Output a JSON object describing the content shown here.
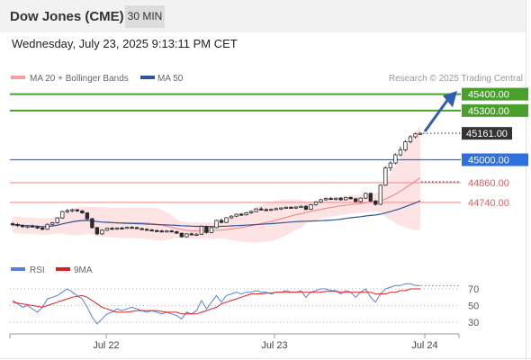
{
  "header": {
    "title": "Dow Jones (CME)",
    "timeframe": "30 MIN",
    "datetime": "Wednesday, July 23, 2025 9:13:11 PM CET"
  },
  "legend": {
    "ma20": "MA 20 + Bollinger Bands",
    "ma50": "MA 50",
    "credit": "Research © 2025 Trading Central",
    "ma20_color": "#f08080",
    "ma50_color": "#2f5597"
  },
  "rsi_legend": {
    "rsi": "RSI",
    "ma9": "9MA",
    "rsi_color": "#5b7fde",
    "ma9_color": "#e02020"
  },
  "chart_data": [
    {
      "type": "candlestick",
      "title": "Dow Jones (CME)",
      "ylim": [
        44500,
        45500
      ],
      "levels": [
        {
          "value": "45400.00",
          "style": "resistance",
          "color": "#4aa02c"
        },
        {
          "value": "45300.00",
          "style": "resistance",
          "color": "#4aa02c"
        },
        {
          "value": "45161.00",
          "style": "last-price",
          "color": "#333333"
        },
        {
          "value": "45000.00",
          "style": "pivot",
          "color": "#2f6fde"
        },
        {
          "value": "44860.00",
          "style": "support",
          "color": "#e06060"
        },
        {
          "value": "44740.00",
          "style": "support",
          "color": "#e06060"
        }
      ],
      "x_ticks": [
        "Jul 22",
        "Jul 23",
        "Jul 24"
      ],
      "candles": [
        [
          44610,
          44620,
          44595,
          44605
        ],
        [
          44605,
          44615,
          44590,
          44600
        ],
        [
          44600,
          44606,
          44585,
          44592
        ],
        [
          44592,
          44600,
          44582,
          44596
        ],
        [
          44596,
          44604,
          44586,
          44590
        ],
        [
          44590,
          44598,
          44578,
          44584
        ],
        [
          44584,
          44590,
          44570,
          44576
        ],
        [
          44576,
          44612,
          44572,
          44606
        ],
        [
          44606,
          44620,
          44600,
          44616
        ],
        [
          44616,
          44650,
          44610,
          44645
        ],
        [
          44645,
          44690,
          44640,
          44684
        ],
        [
          44684,
          44700,
          44675,
          44690
        ],
        [
          44690,
          44702,
          44680,
          44695
        ],
        [
          44695,
          44700,
          44682,
          44688
        ],
        [
          44688,
          44694,
          44670,
          44676
        ],
        [
          44676,
          44680,
          44630,
          44640
        ],
        [
          44640,
          44646,
          44580,
          44586
        ],
        [
          44586,
          44592,
          44540,
          44548
        ],
        [
          44548,
          44576,
          44542,
          44570
        ],
        [
          44570,
          44586,
          44566,
          44582
        ],
        [
          44582,
          44590,
          44574,
          44578
        ],
        [
          44578,
          44588,
          44572,
          44584
        ],
        [
          44584,
          44590,
          44578,
          44582
        ],
        [
          44582,
          44592,
          44578,
          44588
        ],
        [
          44588,
          44594,
          44580,
          44586
        ],
        [
          44586,
          44592,
          44578,
          44580
        ],
        [
          44580,
          44586,
          44572,
          44576
        ],
        [
          44576,
          44582,
          44568,
          44572
        ],
        [
          44572,
          44578,
          44564,
          44568
        ],
        [
          44568,
          44574,
          44560,
          44566
        ],
        [
          44566,
          44572,
          44558,
          44562
        ],
        [
          44562,
          44570,
          44556,
          44566
        ],
        [
          44566,
          44572,
          44560,
          44562
        ],
        [
          44562,
          44566,
          44548,
          44552
        ],
        [
          44552,
          44556,
          44525,
          44530
        ],
        [
          44530,
          44552,
          44526,
          44548
        ],
        [
          44548,
          44556,
          44538,
          44542
        ],
        [
          44542,
          44552,
          44536,
          44546
        ],
        [
          44546,
          44600,
          44540,
          44594
        ],
        [
          44594,
          44598,
          44550,
          44556
        ],
        [
          44556,
          44590,
          44552,
          44586
        ],
        [
          44586,
          44634,
          44582,
          44630
        ],
        [
          44630,
          44642,
          44612,
          44618
        ],
        [
          44618,
          44650,
          44614,
          44646
        ],
        [
          44646,
          44662,
          44640,
          44656
        ],
        [
          44656,
          44672,
          44650,
          44668
        ],
        [
          44668,
          44676,
          44658,
          44664
        ],
        [
          44664,
          44680,
          44660,
          44676
        ],
        [
          44676,
          44690,
          44670,
          44684
        ],
        [
          44684,
          44705,
          44680,
          44700
        ],
        [
          44700,
          44712,
          44690,
          44696
        ],
        [
          44696,
          44704,
          44688,
          44694
        ],
        [
          44694,
          44702,
          44686,
          44698
        ],
        [
          44698,
          44708,
          44692,
          44702
        ],
        [
          44702,
          44710,
          44694,
          44706
        ],
        [
          44706,
          44716,
          44700,
          44710
        ],
        [
          44710,
          44716,
          44702,
          44706
        ],
        [
          44706,
          44714,
          44700,
          44712
        ],
        [
          44712,
          44722,
          44706,
          44716
        ],
        [
          44716,
          44724,
          44692,
          44698
        ],
        [
          44698,
          44730,
          44694,
          44726
        ],
        [
          44726,
          44748,
          44720,
          44742
        ],
        [
          44742,
          44762,
          44736,
          44756
        ],
        [
          44756,
          44770,
          44750,
          44764
        ],
        [
          44764,
          44772,
          44756,
          44760
        ],
        [
          44760,
          44768,
          44752,
          44766
        ],
        [
          44766,
          44772,
          44750,
          44756
        ],
        [
          44756,
          44774,
          44752,
          44770
        ],
        [
          44770,
          44776,
          44758,
          44762
        ],
        [
          44762,
          44768,
          44740,
          44745
        ],
        [
          44745,
          44770,
          44738,
          44766
        ],
        [
          44766,
          44800,
          44760,
          44795
        ],
        [
          44795,
          44800,
          44742,
          44748
        ],
        [
          44748,
          44756,
          44720,
          44728
        ],
        [
          44728,
          44850,
          44724,
          44845
        ],
        [
          44845,
          44960,
          44840,
          44950
        ],
        [
          44950,
          44990,
          44930,
          44980
        ],
        [
          44980,
          45040,
          44972,
          45030
        ],
        [
          45030,
          45080,
          45020,
          45060
        ],
        [
          45060,
          45120,
          45050,
          45110
        ],
        [
          45110,
          45150,
          45100,
          45140
        ],
        [
          45140,
          45165,
          45130,
          45158
        ],
        [
          45158,
          45168,
          45150,
          45161
        ]
      ]
    },
    {
      "type": "line",
      "title": "RSI",
      "ylim": [
        20,
        80
      ],
      "y_ticks": [
        "70",
        "50",
        "30"
      ],
      "series": [
        {
          "name": "RSI",
          "values": [
            56,
            52,
            48,
            50,
            46,
            42,
            48,
            58,
            60,
            62,
            66,
            70,
            66,
            62,
            58,
            48,
            36,
            28,
            34,
            40,
            42,
            46,
            44,
            46,
            48,
            46,
            44,
            42,
            44,
            42,
            40,
            42,
            40,
            38,
            34,
            42,
            40,
            44,
            56,
            46,
            54,
            62,
            54,
            62,
            64,
            66,
            64,
            66,
            66,
            68,
            66,
            66,
            64,
            66,
            66,
            68,
            66,
            66,
            68,
            60,
            66,
            68,
            70,
            70,
            68,
            68,
            64,
            68,
            66,
            60,
            66,
            70,
            60,
            54,
            64,
            70,
            72,
            74,
            74,
            76,
            76,
            74,
            74
          ]
        },
        {
          "name": "9MA",
          "values": [
            54,
            53,
            52,
            51,
            50,
            49,
            48,
            50,
            52,
            54,
            56,
            58,
            60,
            61,
            62,
            60,
            56,
            52,
            48,
            46,
            44,
            42,
            42,
            42,
            43,
            44,
            44,
            44,
            44,
            44,
            43,
            42,
            42,
            42,
            40,
            40,
            40,
            40,
            42,
            44,
            46,
            48,
            52,
            54,
            56,
            58,
            60,
            62,
            64,
            64,
            64,
            65,
            65,
            66,
            66,
            66,
            66,
            66,
            66,
            66,
            66,
            66,
            66,
            67,
            67,
            67,
            66,
            66,
            66,
            66,
            66,
            66,
            66,
            64,
            64,
            64,
            66,
            66,
            68,
            68,
            70,
            70,
            70
          ]
        }
      ]
    }
  ]
}
